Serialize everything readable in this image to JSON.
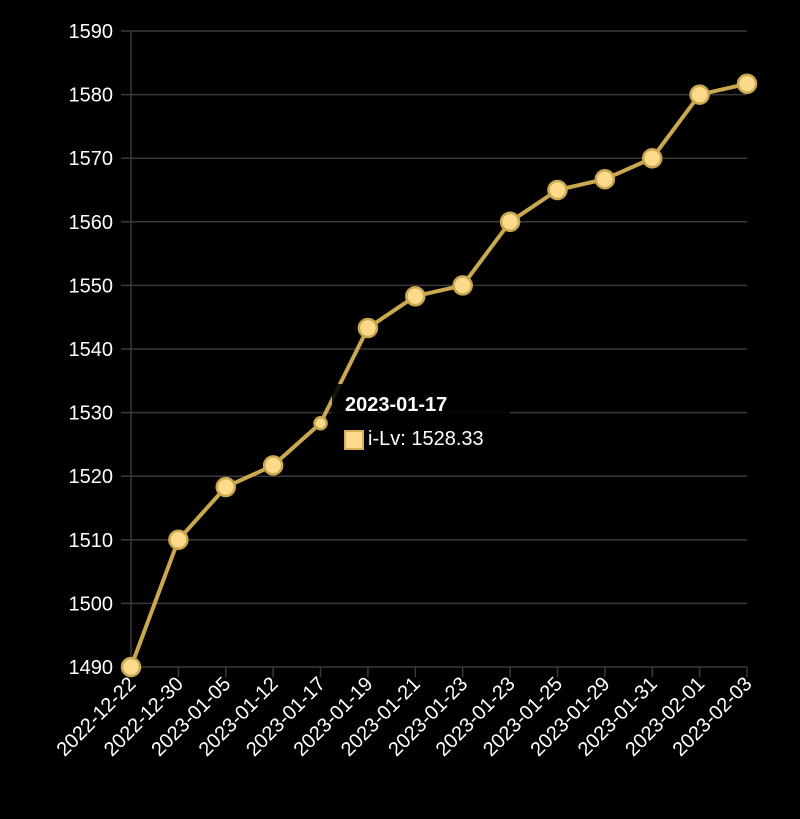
{
  "chart_data": {
    "type": "line",
    "categories": [
      "2022-12-22",
      "2022-12-30",
      "2023-01-05",
      "2023-01-12",
      "2023-01-17",
      "2023-01-19",
      "2023-01-21",
      "2023-01-23",
      "2023-01-23",
      "2023-01-25",
      "2023-01-29",
      "2023-01-31",
      "2023-02-01",
      "2023-02-03"
    ],
    "series": [
      {
        "name": "i-Lv",
        "values": [
          1490,
          1510,
          1518.3,
          1521.7,
          1528.33,
          1543.3,
          1548.3,
          1550,
          1560,
          1565,
          1566.7,
          1570,
          1580,
          1581.7
        ]
      }
    ],
    "ylim": [
      1490,
      1590
    ],
    "yticks": [
      1490,
      1500,
      1510,
      1520,
      1530,
      1540,
      1550,
      1560,
      1570,
      1580,
      1590
    ],
    "grid": true,
    "colors": {
      "line": "#c9a850",
      "point_fill": "#fcd98b",
      "point_stroke": "#c9a850",
      "grid": "#3a3a3a",
      "background": "#000000"
    },
    "tooltip": {
      "title": "2023-01-17",
      "series_label": "i-Lv",
      "value_text": "1528.33",
      "separator": ": "
    }
  }
}
